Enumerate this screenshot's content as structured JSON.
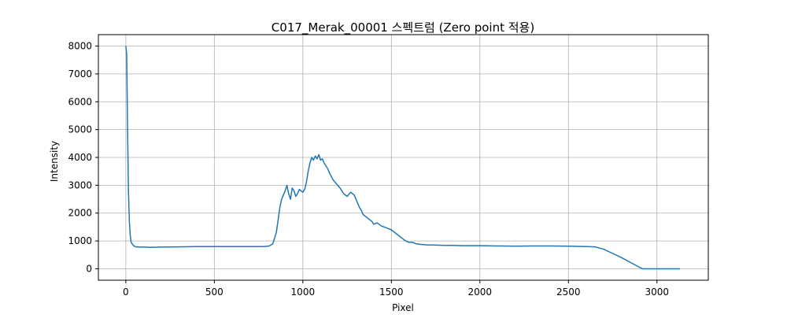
{
  "chart_data": {
    "type": "line",
    "title": "C017_Merak_00001 스펙트럼 (Zero point 적용)",
    "xlabel": "Pixel",
    "ylabel": "Intensity",
    "xlim": [
      -155,
      3290
    ],
    "ylim": [
      -410,
      8410
    ],
    "xticks": [
      0,
      500,
      1000,
      1500,
      2000,
      2500,
      3000
    ],
    "yticks": [
      0,
      1000,
      2000,
      3000,
      4000,
      5000,
      6000,
      7000,
      8000
    ],
    "grid": true,
    "series": [
      {
        "color": "#1f77b4",
        "x": [
          0,
          5,
          10,
          15,
          20,
          25,
          30,
          40,
          50,
          60,
          80,
          100,
          150,
          200,
          300,
          400,
          500,
          600,
          700,
          780,
          810,
          830,
          850,
          870,
          880,
          900,
          910,
          920,
          930,
          940,
          950,
          960,
          970,
          980,
          990,
          1000,
          1010,
          1020,
          1030,
          1040,
          1050,
          1060,
          1070,
          1080,
          1090,
          1100,
          1110,
          1120,
          1130,
          1140,
          1150,
          1170,
          1190,
          1210,
          1230,
          1250,
          1270,
          1290,
          1300,
          1310,
          1320,
          1330,
          1340,
          1350,
          1370,
          1390,
          1400,
          1420,
          1440,
          1460,
          1480,
          1500,
          1520,
          1540,
          1560,
          1580,
          1600,
          1620,
          1640,
          1660,
          1680,
          1700,
          1750,
          1800,
          1850,
          1900,
          2000,
          2100,
          2200,
          2300,
          2400,
          2500,
          2600,
          2650,
          2700,
          2750,
          2800,
          2850,
          2900,
          2920,
          2950,
          3000,
          3050,
          3100,
          3130
        ],
        "y": [
          8000,
          7700,
          5000,
          2800,
          1700,
          1200,
          950,
          860,
          800,
          790,
          780,
          780,
          770,
          780,
          790,
          800,
          800,
          800,
          800,
          800,
          820,
          900,
          1300,
          2200,
          2500,
          2800,
          3000,
          2700,
          2500,
          2900,
          2800,
          2600,
          2700,
          2850,
          2800,
          2750,
          2850,
          3100,
          3500,
          3800,
          4000,
          3900,
          4050,
          3950,
          4100,
          3900,
          3950,
          3800,
          3700,
          3600,
          3450,
          3200,
          3050,
          2900,
          2700,
          2600,
          2750,
          2650,
          2500,
          2350,
          2200,
          2100,
          1950,
          1900,
          1800,
          1700,
          1600,
          1650,
          1550,
          1500,
          1450,
          1400,
          1300,
          1200,
          1100,
          1000,
          950,
          950,
          900,
          880,
          870,
          860,
          850,
          840,
          840,
          830,
          830,
          820,
          810,
          820,
          820,
          810,
          800,
          790,
          700,
          550,
          400,
          230,
          60,
          0,
          0,
          0,
          0,
          0,
          0
        ]
      }
    ]
  }
}
